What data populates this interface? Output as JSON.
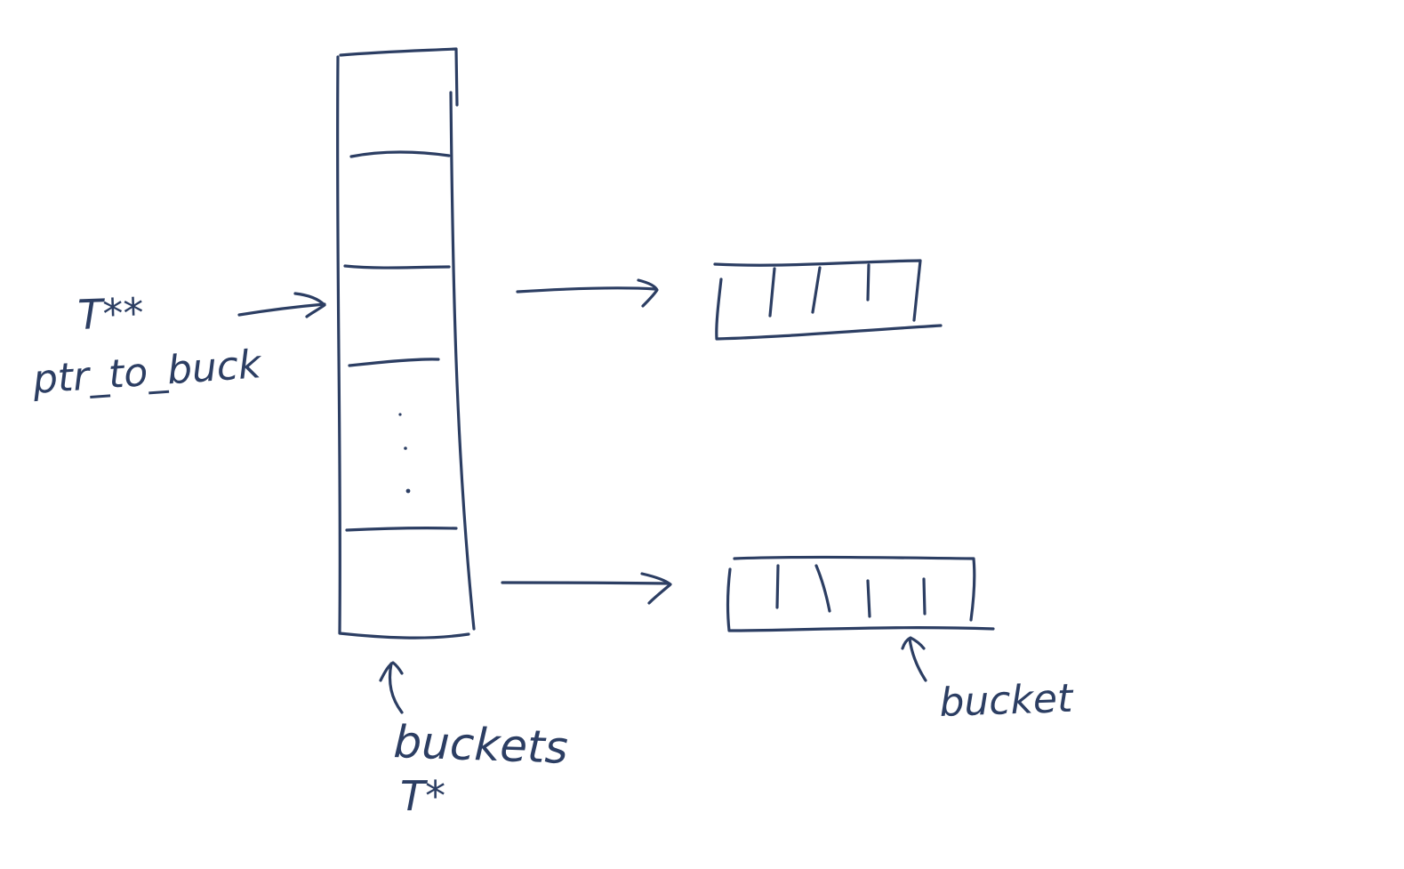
{
  "colors": {
    "ink": "#2c3e63",
    "background": "#ffffff"
  },
  "labels": {
    "double_pointer_type": "T**",
    "double_pointer_name": "ptr_to_buck",
    "pointer_array_name": "buckets",
    "pointer_array_type": "T*",
    "bucket_name": "bucket"
  },
  "diagram": {
    "pointer_array_slots_drawn": 5,
    "ellipsis_between_slots": true,
    "buckets_drawn": [
      {
        "cells": 5
      },
      {
        "cells": 6
      }
    ]
  }
}
